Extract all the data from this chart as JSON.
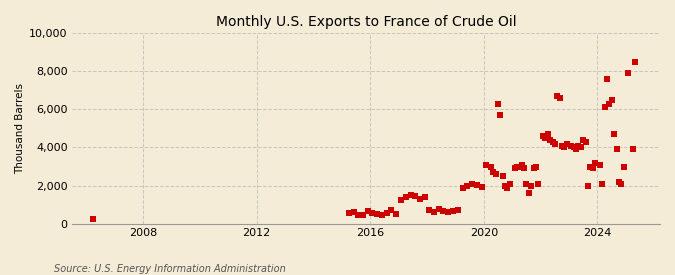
{
  "title": "Monthly U.S. Exports to France of Crude Oil",
  "ylabel": "Thousand Barrels",
  "source": "Source: U.S. Energy Information Administration",
  "background_color": "#f5ecd7",
  "plot_background_color": "#f5ecd7",
  "marker_color": "#cc0000",
  "marker": "s",
  "marker_size": 4,
  "ylim": [
    0,
    10000
  ],
  "yticks": [
    0,
    2000,
    4000,
    6000,
    8000,
    10000
  ],
  "xticks": [
    2008,
    2012,
    2016,
    2020,
    2024
  ],
  "xlim_start": 2005.5,
  "xlim_end": 2026.2,
  "data": [
    [
      2006.25,
      250
    ],
    [
      2015.25,
      550
    ],
    [
      2015.42,
      600
    ],
    [
      2015.58,
      480
    ],
    [
      2015.75,
      450
    ],
    [
      2015.92,
      680
    ],
    [
      2016.08,
      560
    ],
    [
      2016.25,
      510
    ],
    [
      2016.42,
      460
    ],
    [
      2016.58,
      590
    ],
    [
      2016.75,
      700
    ],
    [
      2016.92,
      530
    ],
    [
      2017.08,
      1250
    ],
    [
      2017.25,
      1400
    ],
    [
      2017.42,
      1500
    ],
    [
      2017.58,
      1450
    ],
    [
      2017.75,
      1300
    ],
    [
      2017.92,
      1400
    ],
    [
      2018.08,
      700
    ],
    [
      2018.25,
      600
    ],
    [
      2018.42,
      800
    ],
    [
      2018.58,
      680
    ],
    [
      2018.75,
      600
    ],
    [
      2018.92,
      680
    ],
    [
      2019.08,
      700
    ],
    [
      2019.25,
      1900
    ],
    [
      2019.42,
      2000
    ],
    [
      2019.58,
      2100
    ],
    [
      2019.75,
      2050
    ],
    [
      2019.92,
      1950
    ],
    [
      2020.08,
      3100
    ],
    [
      2020.25,
      3000
    ],
    [
      2020.33,
      2700
    ],
    [
      2020.42,
      2600
    ],
    [
      2020.5,
      6300
    ],
    [
      2020.58,
      5700
    ],
    [
      2020.67,
      2500
    ],
    [
      2020.75,
      2000
    ],
    [
      2020.83,
      1900
    ],
    [
      2020.92,
      2100
    ],
    [
      2021.08,
      2900
    ],
    [
      2021.17,
      3000
    ],
    [
      2021.25,
      3000
    ],
    [
      2021.33,
      3100
    ],
    [
      2021.42,
      2900
    ],
    [
      2021.5,
      2100
    ],
    [
      2021.58,
      1600
    ],
    [
      2021.67,
      2000
    ],
    [
      2021.75,
      2900
    ],
    [
      2021.83,
      3000
    ],
    [
      2021.92,
      2100
    ],
    [
      2022.08,
      4600
    ],
    [
      2022.17,
      4500
    ],
    [
      2022.25,
      4700
    ],
    [
      2022.33,
      4400
    ],
    [
      2022.42,
      4300
    ],
    [
      2022.5,
      4200
    ],
    [
      2022.58,
      6700
    ],
    [
      2022.67,
      6600
    ],
    [
      2022.75,
      4100
    ],
    [
      2022.83,
      4000
    ],
    [
      2022.92,
      4200
    ],
    [
      2023.08,
      4100
    ],
    [
      2023.17,
      4000
    ],
    [
      2023.25,
      3900
    ],
    [
      2023.33,
      4100
    ],
    [
      2023.42,
      4000
    ],
    [
      2023.5,
      4400
    ],
    [
      2023.58,
      4300
    ],
    [
      2023.67,
      2000
    ],
    [
      2023.75,
      3000
    ],
    [
      2023.83,
      2900
    ],
    [
      2023.92,
      3200
    ],
    [
      2024.08,
      3100
    ],
    [
      2024.17,
      2100
    ],
    [
      2024.25,
      6100
    ],
    [
      2024.33,
      7600
    ],
    [
      2024.42,
      6300
    ],
    [
      2024.5,
      6500
    ],
    [
      2024.58,
      4700
    ],
    [
      2024.67,
      3900
    ],
    [
      2024.75,
      2200
    ],
    [
      2024.83,
      2100
    ],
    [
      2024.92,
      3000
    ],
    [
      2025.08,
      7900
    ],
    [
      2025.25,
      3900
    ],
    [
      2025.33,
      8500
    ]
  ],
  "grid_color": "#bbbbbb",
  "grid_linestyle": "--",
  "grid_alpha": 0.8,
  "title_fontsize": 10,
  "label_fontsize": 7.5,
  "tick_fontsize": 8,
  "source_fontsize": 7
}
